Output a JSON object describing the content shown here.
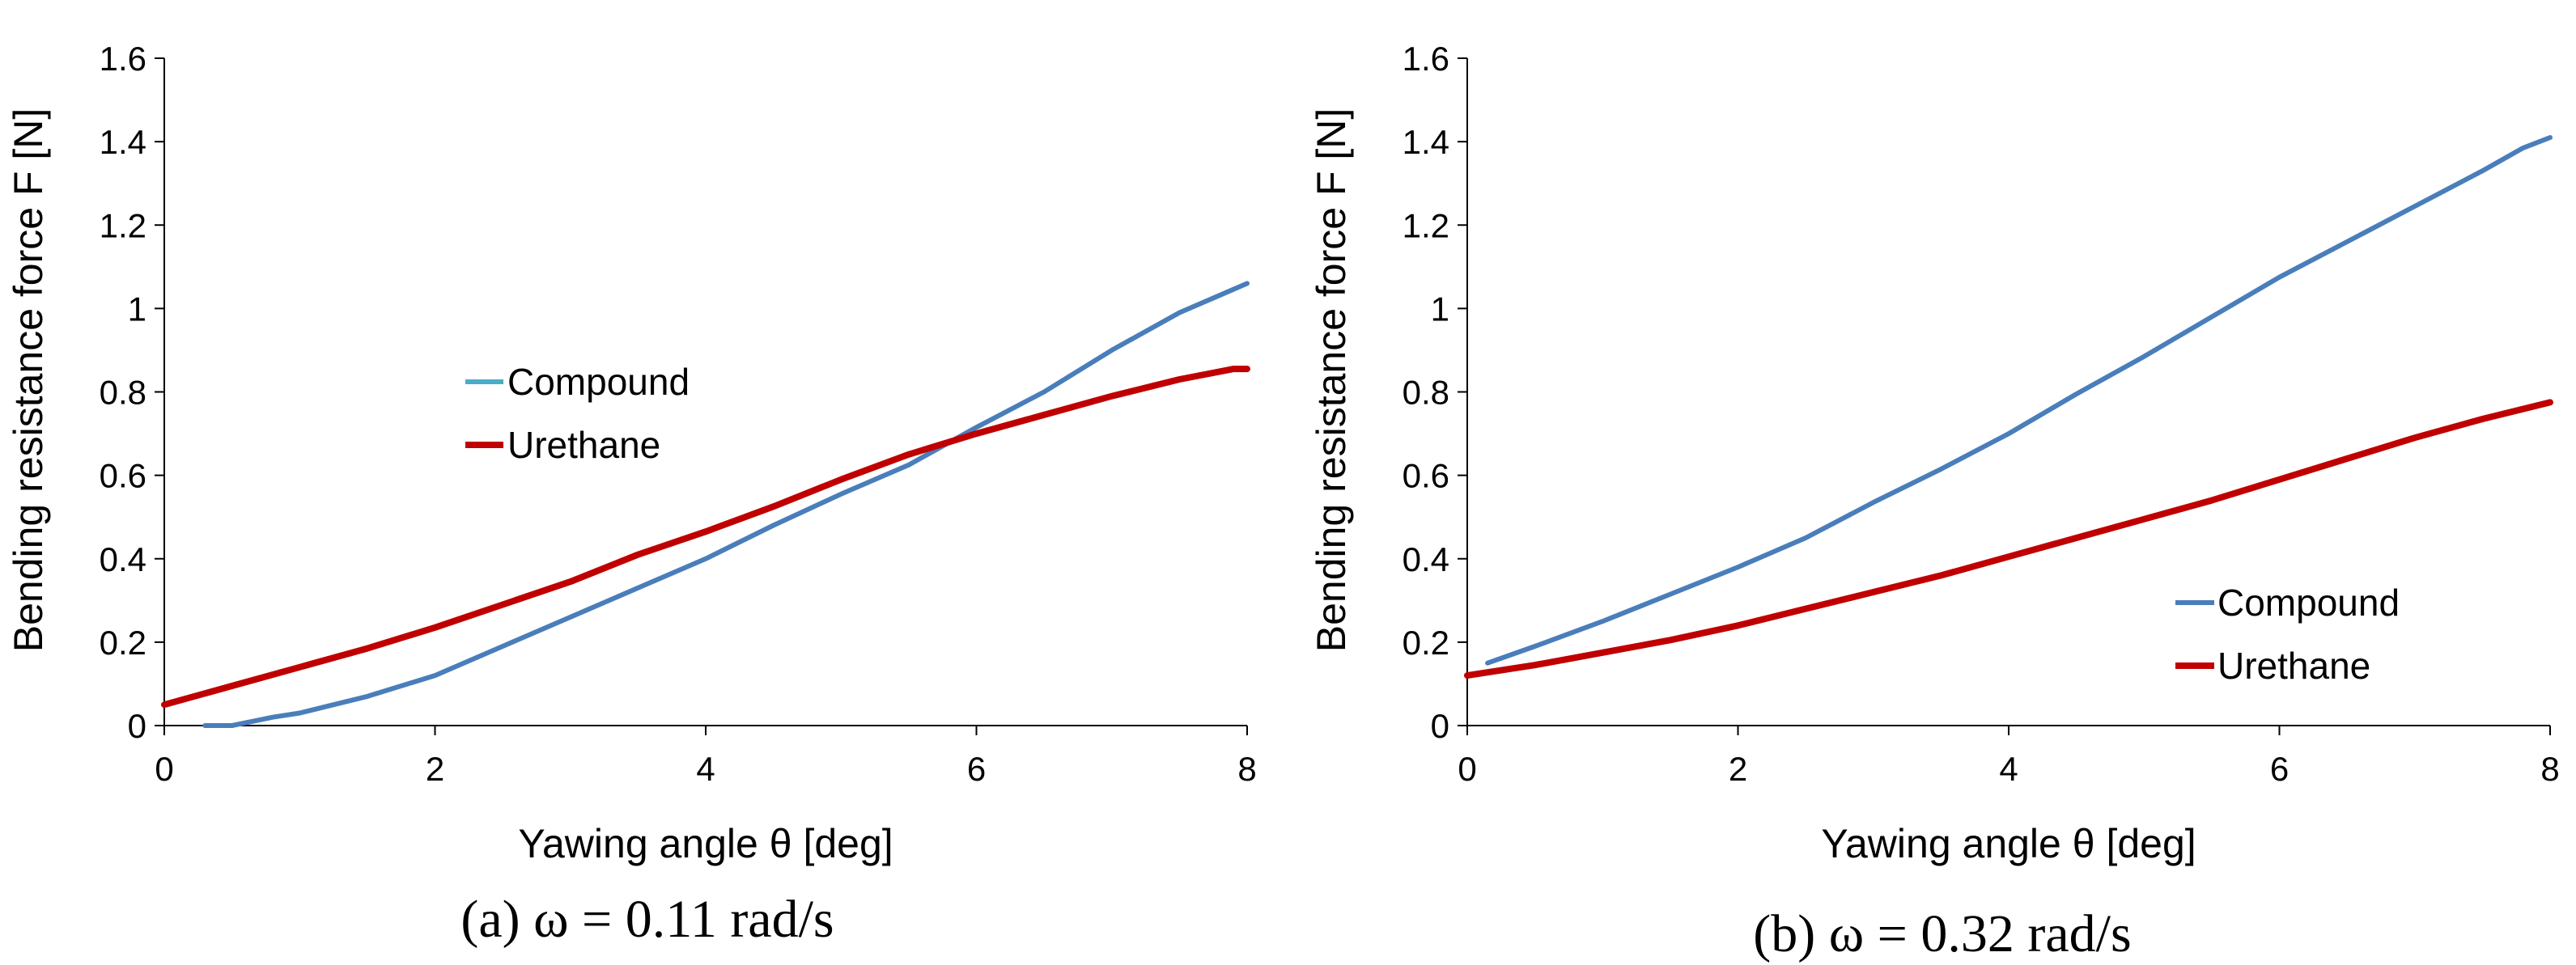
{
  "chart_data": [
    {
      "type": "line",
      "caption": "(a) ω = 0.11 rad/s",
      "xlabel": "Yawing angle θ [deg]",
      "ylabel": "Bending resistance force F [N]",
      "xlim": [
        0,
        8
      ],
      "ylim": [
        0,
        1.6
      ],
      "xticks": [
        "0",
        "2",
        "4",
        "6",
        "8"
      ],
      "yticks": [
        "0",
        "0.2",
        "0.4",
        "0.6",
        "0.8",
        "1",
        "1.2",
        "1.4",
        "1.6"
      ],
      "legend_position": "center-left",
      "series": [
        {
          "name": "Compound",
          "color": "#4a7ebb",
          "legend_color": "#4bacc6",
          "x": [
            0.3,
            0.5,
            0.8,
            1.0,
            1.5,
            2.0,
            2.5,
            3.0,
            3.5,
            4.0,
            4.5,
            5.0,
            5.5,
            6.0,
            6.5,
            7.0,
            7.5,
            8.0
          ],
          "y": [
            0.0,
            0.0,
            0.02,
            0.03,
            0.07,
            0.12,
            0.19,
            0.26,
            0.33,
            0.4,
            0.48,
            0.555,
            0.625,
            0.715,
            0.8,
            0.9,
            0.99,
            1.06
          ]
        },
        {
          "name": "Urethane",
          "color": "#c00000",
          "legend_color": "#c00000",
          "x": [
            0.0,
            0.5,
            1.0,
            1.5,
            2.0,
            2.5,
            3.0,
            3.5,
            4.0,
            4.5,
            5.0,
            5.5,
            6.0,
            6.5,
            7.0,
            7.5,
            7.9,
            8.0
          ],
          "y": [
            0.05,
            0.095,
            0.14,
            0.185,
            0.235,
            0.29,
            0.345,
            0.41,
            0.465,
            0.525,
            0.59,
            0.65,
            0.7,
            0.745,
            0.79,
            0.83,
            0.855,
            0.855
          ]
        }
      ]
    },
    {
      "type": "line",
      "caption": "(b) ω = 0.32 rad/s",
      "xlabel": "Yawing angle θ [deg]",
      "ylabel": "Bending resistance force F [N]",
      "xlim": [
        0,
        8
      ],
      "ylim": [
        0,
        1.6
      ],
      "xticks": [
        "0",
        "2",
        "4",
        "6",
        "8"
      ],
      "yticks": [
        "0",
        "0.2",
        "0.4",
        "0.6",
        "0.8",
        "1",
        "1.2",
        "1.4",
        "1.6"
      ],
      "legend_position": "bottom-right",
      "series": [
        {
          "name": "Compound",
          "color": "#4a7ebb",
          "legend_color": "#4a7ebb",
          "x": [
            0.15,
            0.5,
            1.0,
            1.5,
            2.0,
            2.5,
            3.0,
            3.5,
            4.0,
            4.5,
            5.0,
            5.5,
            6.0,
            6.5,
            7.0,
            7.5,
            7.8,
            8.0
          ],
          "y": [
            0.15,
            0.19,
            0.25,
            0.315,
            0.38,
            0.45,
            0.535,
            0.615,
            0.7,
            0.795,
            0.885,
            0.98,
            1.075,
            1.16,
            1.245,
            1.33,
            1.385,
            1.41
          ]
        },
        {
          "name": "Urethane",
          "color": "#c00000",
          "legend_color": "#c00000",
          "x": [
            0.0,
            0.5,
            1.0,
            1.5,
            2.0,
            2.5,
            3.0,
            3.5,
            4.0,
            4.5,
            5.0,
            5.5,
            6.0,
            6.5,
            7.0,
            7.5,
            8.0
          ],
          "y": [
            0.12,
            0.145,
            0.175,
            0.205,
            0.24,
            0.28,
            0.32,
            0.36,
            0.405,
            0.45,
            0.495,
            0.54,
            0.59,
            0.64,
            0.69,
            0.735,
            0.775
          ]
        }
      ]
    }
  ]
}
